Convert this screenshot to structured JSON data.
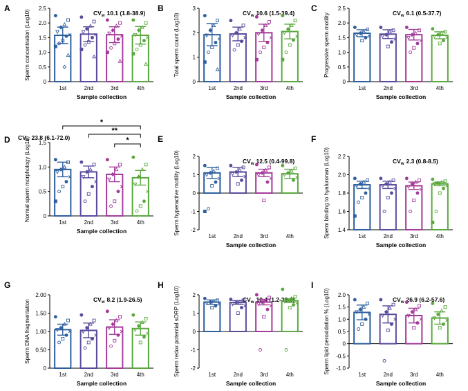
{
  "colors": [
    "#2e5f9e",
    "#5a4a9c",
    "#a43a9a",
    "#5aa83e"
  ],
  "chart_data": [
    {
      "type": "bar",
      "panel": "A",
      "cv_label": "CV",
      "cv_sub": "w",
      "cv_value": "10.1 (1.8-38.9)",
      "categories": [
        "1st",
        "2nd",
        "3rd",
        "4th"
      ],
      "values": [
        1.58,
        1.62,
        1.6,
        1.58
      ],
      "sd": [
        0.28,
        0.25,
        0.27,
        0.3
      ],
      "ylim": [
        0,
        2.5
      ],
      "yticks": [
        0,
        0.5,
        1,
        1.5,
        2,
        2.5
      ],
      "ytick_labels": [
        "0",
        "0.5",
        "1.0",
        "1.5",
        "2.0",
        "2.5"
      ],
      "ylabel": "Sperm concentration (Log10)",
      "xlabel": "Sample collection",
      "points": [
        [
          2.25,
          2.1,
          1.95,
          1.85,
          1.7,
          1.6,
          1.55,
          1.4,
          1.3,
          1.2,
          0.9,
          0.5
        ],
        [
          2.2,
          2.05,
          1.9,
          1.8,
          1.7,
          1.6,
          1.5,
          1.35,
          1.25,
          1.1,
          0.85
        ],
        [
          2.1,
          2.0,
          1.9,
          1.75,
          1.65,
          1.55,
          1.45,
          1.3,
          1.15,
          1.0,
          0.7
        ],
        [
          2.1,
          2.0,
          1.85,
          1.75,
          1.6,
          1.5,
          1.4,
          1.25,
          1.1,
          0.95,
          0.6
        ]
      ]
    },
    {
      "type": "bar",
      "panel": "B",
      "cv_label": "CV",
      "cv_sub": "w",
      "cv_value": "10.6 (1.5-39.4)",
      "categories": [
        "1st",
        "2nd",
        "3rd",
        "4th"
      ],
      "values": [
        1.92,
        1.95,
        2.0,
        2.05
      ],
      "sd": [
        0.45,
        0.28,
        0.35,
        0.3
      ],
      "ylim": [
        0,
        3
      ],
      "yticks": [
        0,
        1,
        2,
        3
      ],
      "ytick_labels": [
        "0",
        "1",
        "2",
        "3"
      ],
      "ylabel": "Total sperm count (Log10)",
      "xlabel": "Sample collection",
      "points": [
        [
          2.7,
          2.5,
          2.3,
          2.1,
          1.9,
          1.75,
          1.6,
          1.4,
          1.2,
          0.8,
          0.5
        ],
        [
          2.5,
          2.3,
          2.15,
          2.0,
          1.9,
          1.8,
          1.65,
          1.5,
          1.3
        ],
        [
          2.65,
          2.45,
          2.3,
          2.1,
          1.95,
          1.8,
          1.6,
          1.4,
          1.2,
          0.9
        ],
        [
          2.7,
          2.5,
          2.3,
          2.15,
          2.0,
          1.85,
          1.7,
          1.5,
          1.2,
          0.9
        ]
      ]
    },
    {
      "type": "bar",
      "panel": "C",
      "cv_label": "CV",
      "cv_sub": "w",
      "cv_value": "6.1 (0.5-37.7)",
      "categories": [
        "1st",
        "2nd",
        "3rd",
        "4th"
      ],
      "values": [
        1.65,
        1.62,
        1.6,
        1.58
      ],
      "sd": [
        0.12,
        0.15,
        0.18,
        0.12
      ],
      "ylim": [
        0,
        2.5
      ],
      "yticks": [
        0,
        0.5,
        1,
        1.5,
        2,
        2.5
      ],
      "ytick_labels": [
        "0",
        "0.5",
        "1.0",
        "1.5",
        "2.0",
        "2.5"
      ],
      "ylabel": "Progressive sperm motility",
      "xlabel": "Sample collection",
      "points": [
        [
          1.85,
          1.78,
          1.7,
          1.65,
          1.6,
          1.55,
          1.5,
          1.4
        ],
        [
          1.85,
          1.75,
          1.7,
          1.6,
          1.55,
          1.45,
          1.35,
          1.2
        ],
        [
          1.85,
          1.75,
          1.65,
          1.6,
          1.5,
          1.4,
          1.3,
          1.15,
          1.0
        ],
        [
          1.8,
          1.7,
          1.65,
          1.6,
          1.55,
          1.5,
          1.4,
          1.3
        ]
      ]
    },
    {
      "type": "bar",
      "panel": "D",
      "cv_label": "CV",
      "cv_sub": "w",
      "cv_value": "23.8 (6.1-72.0)",
      "categories": [
        "1st",
        "2nd",
        "3rd",
        "4th"
      ],
      "values": [
        0.95,
        0.9,
        0.85,
        0.78
      ],
      "sd": [
        0.15,
        0.12,
        0.15,
        0.15
      ],
      "ylim": [
        0,
        1.5
      ],
      "yticks": [
        0,
        0.5,
        1,
        1.5
      ],
      "ytick_labels": [
        "0",
        "0.5",
        "1.0",
        "1.5"
      ],
      "ylabel": "Normal sperm morphology (Log10)",
      "xlabel": "Sample collection",
      "significance": [
        {
          "from": 0,
          "to": 3,
          "label": "*"
        },
        {
          "from": 1,
          "to": 3,
          "label": "**"
        },
        {
          "from": 2,
          "to": 3,
          "label": "*"
        }
      ],
      "points": [
        [
          1.15,
          1.1,
          1.0,
          0.95,
          0.9,
          0.8,
          0.7,
          0.6,
          0.5,
          0.3
        ],
        [
          1.1,
          1.05,
          0.95,
          0.9,
          0.8,
          0.7,
          0.6,
          0.45,
          0.3
        ],
        [
          1.15,
          1.05,
          0.95,
          0.85,
          0.75,
          0.6,
          0.5,
          0.3,
          0.2
        ],
        [
          1.2,
          1.05,
          0.95,
          0.8,
          0.65,
          0.5,
          0.3,
          0.2,
          0.1
        ]
      ]
    },
    {
      "type": "bar",
      "panel": "E",
      "cv_label": "CV",
      "cv_sub": "w",
      "cv_value": "12.5 (0.4-99.8)",
      "categories": [
        "1st",
        "2nd",
        "3rd",
        "4th"
      ],
      "values": [
        1.1,
        1.15,
        1.1,
        1.05
      ],
      "sd": [
        0.3,
        0.25,
        0.2,
        0.25
      ],
      "ylim": [
        -2,
        2
      ],
      "yticks": [
        -2,
        -1,
        0,
        1,
        2
      ],
      "ytick_labels": [
        "-2",
        "-1",
        "0",
        "1",
        "2"
      ],
      "ylabel": "Sperm hyperactive motility (Log10)",
      "xlabel": "Sample collection",
      "points": [
        [
          1.5,
          1.35,
          1.2,
          1.1,
          1.0,
          0.8,
          0.6,
          0.4,
          -0.85,
          -1.0
        ],
        [
          1.5,
          1.4,
          1.25,
          1.15,
          1.05,
          0.9,
          0.7,
          0.5
        ],
        [
          1.55,
          1.4,
          1.25,
          1.1,
          1.0,
          0.8,
          0.6,
          -0.4
        ],
        [
          1.5,
          1.35,
          1.2,
          1.1,
          1.0,
          0.85,
          0.7
        ]
      ]
    },
    {
      "type": "bar",
      "panel": "F",
      "cv_label": "CV",
      "cv_sub": "w",
      "cv_value": "2.3 (0.8-8.5)",
      "categories": [
        "1st",
        "2nd",
        "3rd",
        "4th"
      ],
      "values": [
        1.89,
        1.89,
        1.88,
        1.9
      ],
      "sd": [
        0.04,
        0.04,
        0.04,
        0.02
      ],
      "ylim": [
        1.4,
        2.2
      ],
      "yticks": [
        1.4,
        1.6,
        1.8,
        2.0,
        2.2
      ],
      "ytick_labels": [
        "1.4",
        "1.6",
        "1.8",
        "2.0",
        "2.2"
      ],
      "ylabel": "Sperm binding to hyaluronan (Log10)",
      "xlabel": "Sample collection",
      "points": [
        [
          1.96,
          1.94,
          1.92,
          1.9,
          1.88,
          1.85,
          1.8,
          1.75,
          1.7,
          1.55
        ],
        [
          1.96,
          1.94,
          1.92,
          1.9,
          1.88,
          1.85,
          1.8,
          1.75,
          1.6
        ],
        [
          1.96,
          1.94,
          1.92,
          1.9,
          1.87,
          1.84,
          1.8,
          1.72,
          1.6
        ],
        [
          1.95,
          1.93,
          1.92,
          1.91,
          1.9,
          1.88,
          1.85,
          1.8,
          1.6,
          1.48
        ]
      ]
    },
    {
      "type": "bar",
      "panel": "G",
      "cv_label": "CV",
      "cv_sub": "w",
      "cv_value": "8.2 (1.9-26.5)",
      "categories": [
        "1st",
        "2nd",
        "3rd",
        "4th"
      ],
      "values": [
        1.05,
        1.03,
        1.12,
        1.08
      ],
      "sd": [
        0.15,
        0.2,
        0.2,
        0.18
      ],
      "ylim": [
        0,
        2
      ],
      "yticks": [
        0,
        0.5,
        1,
        1.5,
        2
      ],
      "ytick_labels": [
        "0",
        "0.50",
        "1.00",
        "1.50",
        "2.00"
      ],
      "ylabel": "Sperm DNA fragmentation",
      "xlabel": "Sample collection",
      "points": [
        [
          1.4,
          1.3,
          1.2,
          1.1,
          1.05,
          1.0,
          0.9,
          0.8,
          0.7
        ],
        [
          1.45,
          1.3,
          1.2,
          1.1,
          1.0,
          0.9,
          0.8,
          0.7,
          0.55
        ],
        [
          1.55,
          1.4,
          1.3,
          1.2,
          1.1,
          1.0,
          0.9,
          0.75,
          0.6
        ],
        [
          1.45,
          1.35,
          1.25,
          1.15,
          1.05,
          0.95,
          0.85,
          0.7
        ]
      ]
    },
    {
      "type": "bar",
      "panel": "H",
      "cv_label": "CV",
      "cv_sub": "w",
      "cv_value": "10.4 (1.2-28.6)",
      "categories": [
        "1st",
        "2nd",
        "3rd",
        "4th"
      ],
      "values": [
        1.6,
        1.58,
        1.6,
        1.68
      ],
      "sd": [
        0.12,
        0.1,
        0.15,
        0.1
      ],
      "ylim": [
        -2,
        2
      ],
      "yticks": [
        -2,
        -1,
        0,
        1,
        2
      ],
      "ytick_labels": [
        "-2",
        "-1",
        "0",
        "1",
        "2"
      ],
      "ylabel": "Sperm redox potential sORP (Log10)",
      "xlabel": "Sample collection",
      "points": [
        [
          1.8,
          1.7,
          1.65,
          1.6,
          1.55,
          1.5,
          1.4,
          1.3
        ],
        [
          1.75,
          1.7,
          1.62,
          1.58,
          1.5,
          1.4,
          1.3,
          1.0
        ],
        [
          2.0,
          1.85,
          1.7,
          1.6,
          1.5,
          1.4,
          1.2,
          0.8,
          -1.0
        ],
        [
          2.3,
          1.9,
          1.8,
          1.7,
          1.65,
          1.55,
          1.45,
          1.3,
          -1.0
        ]
      ]
    },
    {
      "type": "bar",
      "panel": "I",
      "cv_label": "CV",
      "cv_sub": "w",
      "cv_value": "26.9 (6.2-57.6)",
      "categories": [
        "1st",
        "2nd",
        "3rd",
        "4th"
      ],
      "values": [
        1.28,
        1.2,
        1.15,
        1.05
      ],
      "sd": [
        0.3,
        0.35,
        0.3,
        0.25
      ],
      "ylim": [
        -1,
        2
      ],
      "yticks": [
        -1,
        -0.5,
        0,
        0.5,
        1,
        1.5,
        2
      ],
      "ytick_labels": [
        "-1.0",
        "-0.5",
        "0",
        "0.5",
        "1.0",
        "1.5",
        "2.0"
      ],
      "ylabel": "Sperm lipid peroxidation % (Log10)",
      "xlabel": "Sample collection",
      "points": [
        [
          1.8,
          1.65,
          1.5,
          1.4,
          1.3,
          1.2,
          1.0,
          0.8,
          0.6
        ],
        [
          1.8,
          1.6,
          1.45,
          1.3,
          1.15,
          1.0,
          0.8,
          0.55,
          -0.7
        ],
        [
          1.7,
          1.55,
          1.4,
          1.3,
          1.15,
          1.0,
          0.85,
          0.65
        ],
        [
          1.65,
          1.5,
          1.35,
          1.2,
          1.05,
          0.95,
          0.8,
          0.65
        ]
      ]
    }
  ]
}
